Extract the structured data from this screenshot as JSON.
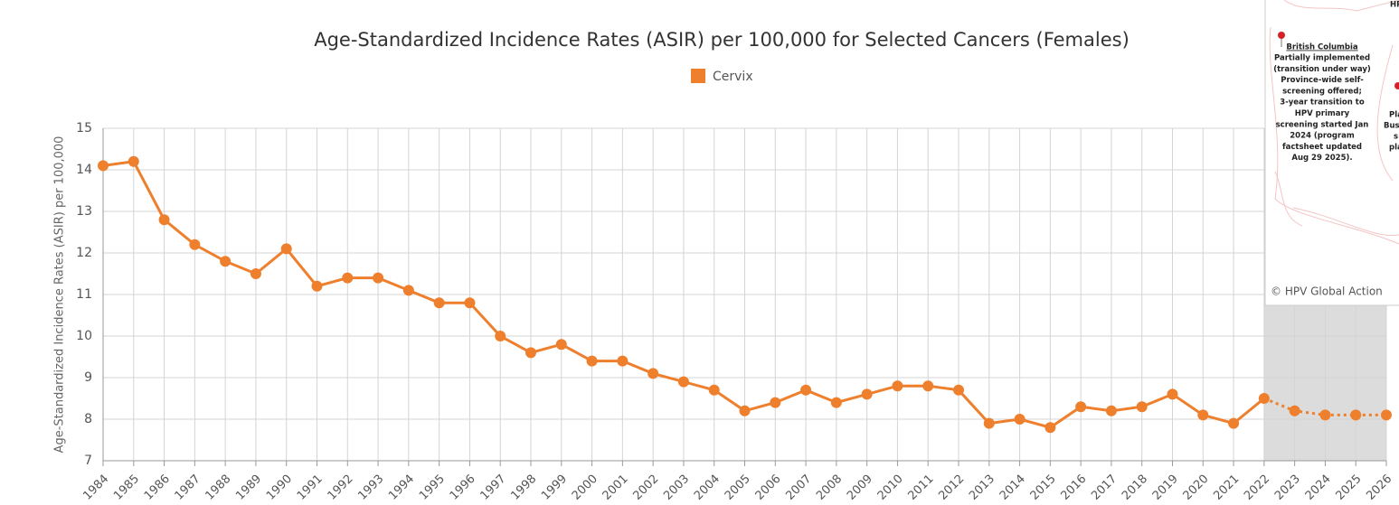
{
  "chart_data": {
    "type": "line",
    "title": "Age-Standardized Incidence Rates (ASIR) per 100,000 for Selected Cancers (Females)",
    "y_label": "Age-Standardized Incidence Rates (ASIR) per 100,000",
    "x": [
      1984,
      1985,
      1986,
      1987,
      1988,
      1989,
      1990,
      1991,
      1992,
      1993,
      1994,
      1995,
      1996,
      1997,
      1998,
      1999,
      2000,
      2001,
      2002,
      2003,
      2004,
      2005,
      2006,
      2007,
      2008,
      2009,
      2010,
      2011,
      2012,
      2013,
      2014,
      2015,
      2016,
      2017,
      2018,
      2019,
      2020,
      2021,
      2022,
      2023,
      2024,
      2025,
      2026
    ],
    "series": [
      {
        "name": "Cervix",
        "color": "#ee7f2d",
        "values": [
          14.1,
          14.2,
          12.8,
          12.2,
          11.8,
          11.5,
          12.1,
          11.2,
          11.4,
          11.4,
          11.1,
          10.8,
          10.8,
          10.0,
          9.6,
          9.8,
          9.4,
          9.4,
          9.1,
          8.9,
          8.7,
          8.2,
          8.4,
          8.7,
          8.4,
          8.6,
          8.8,
          8.8,
          8.7,
          7.9,
          8.0,
          7.8,
          8.3,
          8.2,
          8.3,
          8.6,
          8.1,
          7.9,
          8.5,
          8.2,
          8.1,
          8.1,
          8.1
        ]
      }
    ],
    "projected_from": 2022,
    "xlim": [
      1984,
      2026
    ],
    "xticks": [
      1984,
      1985,
      1986,
      1987,
      1988,
      1989,
      1990,
      1991,
      1992,
      1993,
      1994,
      1995,
      1996,
      1997,
      1998,
      1999,
      2000,
      2001,
      2002,
      2003,
      2004,
      2005,
      2006,
      2007,
      2008,
      2009,
      2010,
      2011,
      2012,
      2013,
      2014,
      2015,
      2016,
      2017,
      2018,
      2019,
      2020,
      2021,
      2022,
      2023,
      2024,
      2025,
      2026
    ],
    "ylim": [
      7,
      15
    ],
    "yticks": [
      7,
      8,
      9,
      10,
      11,
      12,
      13,
      14,
      15
    ],
    "grid": true
  },
  "overlay": {
    "heading": "British Columbia",
    "lines": [
      "Partially implemented",
      "(transition under way)",
      "Province-wide self-",
      "screening offered;",
      "3-year transition to",
      "HPV primary",
      "screening started Jan",
      "2024 (program",
      "factsheet updated",
      "Aug 29 2025)."
    ],
    "clipped_text": [
      "HP",
      "Pla",
      "Busi",
      "s",
      "pla"
    ],
    "credit": "© HPV Global Action"
  }
}
